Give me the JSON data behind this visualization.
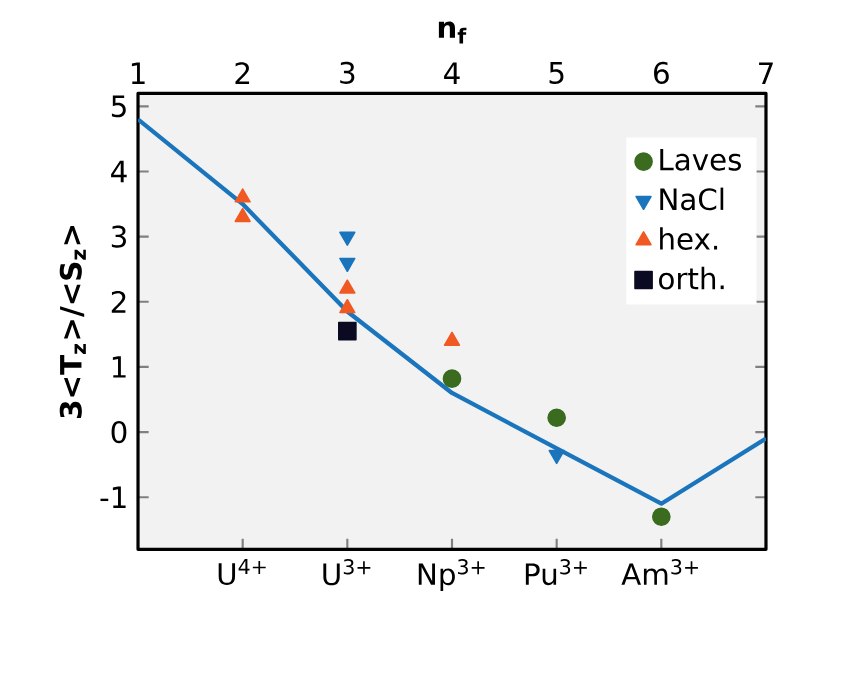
{
  "chart_data": {
    "type": "scatter",
    "xlabel": "n$_{f}$",
    "ylabel": "3<T$_{z}$>/<S$_{z}$>",
    "xlim": [
      1,
      7
    ],
    "ylim": [
      -1.8,
      5.2
    ],
    "xticks": [
      1,
      2,
      3,
      4,
      5,
      6,
      7
    ],
    "yticks": [
      -1,
      0,
      1,
      2,
      3,
      4,
      5
    ],
    "annotations": [
      {
        "text": "U$^{4+}$",
        "x": 2
      },
      {
        "text": "U$^{3+}$",
        "x": 3
      },
      {
        "text": "Np$^{3+}$",
        "x": 4
      },
      {
        "text": "Pu$^{3+}$",
        "x": 5
      },
      {
        "text": "Am$^{3+}$",
        "x": 6
      }
    ],
    "grid": false,
    "legend": "right",
    "series": [
      {
        "type": "line",
        "color": "#1a75bc",
        "marker": "none",
        "line_style": "solid",
        "x": [
          1,
          2,
          3,
          4,
          5,
          6,
          7
        ],
        "values": [
          4.8,
          3.5,
          1.85,
          0.6,
          -0.25,
          -1.1,
          -0.1
        ]
      },
      {
        "name": "Laves",
        "color": "#3a6b1e",
        "marker": "circle",
        "x": [
          4,
          5,
          6
        ],
        "values": [
          0.82,
          0.22,
          -1.3
        ]
      },
      {
        "name": "NaCl",
        "color": "#1a75bc",
        "marker": "triangle_down",
        "x": [
          3,
          3,
          5
        ],
        "values": [
          3.0,
          2.6,
          -0.35
        ]
      },
      {
        "name": "hex.",
        "color": "#f05a22",
        "marker": "triangle",
        "x": [
          2,
          2,
          3,
          3,
          4
        ],
        "values": [
          3.6,
          3.3,
          2.2,
          1.9,
          1.4
        ]
      },
      {
        "name": "orth.",
        "color": "#0a0a23",
        "marker": "square",
        "x": [
          3
        ],
        "values": [
          1.55
        ]
      }
    ]
  }
}
